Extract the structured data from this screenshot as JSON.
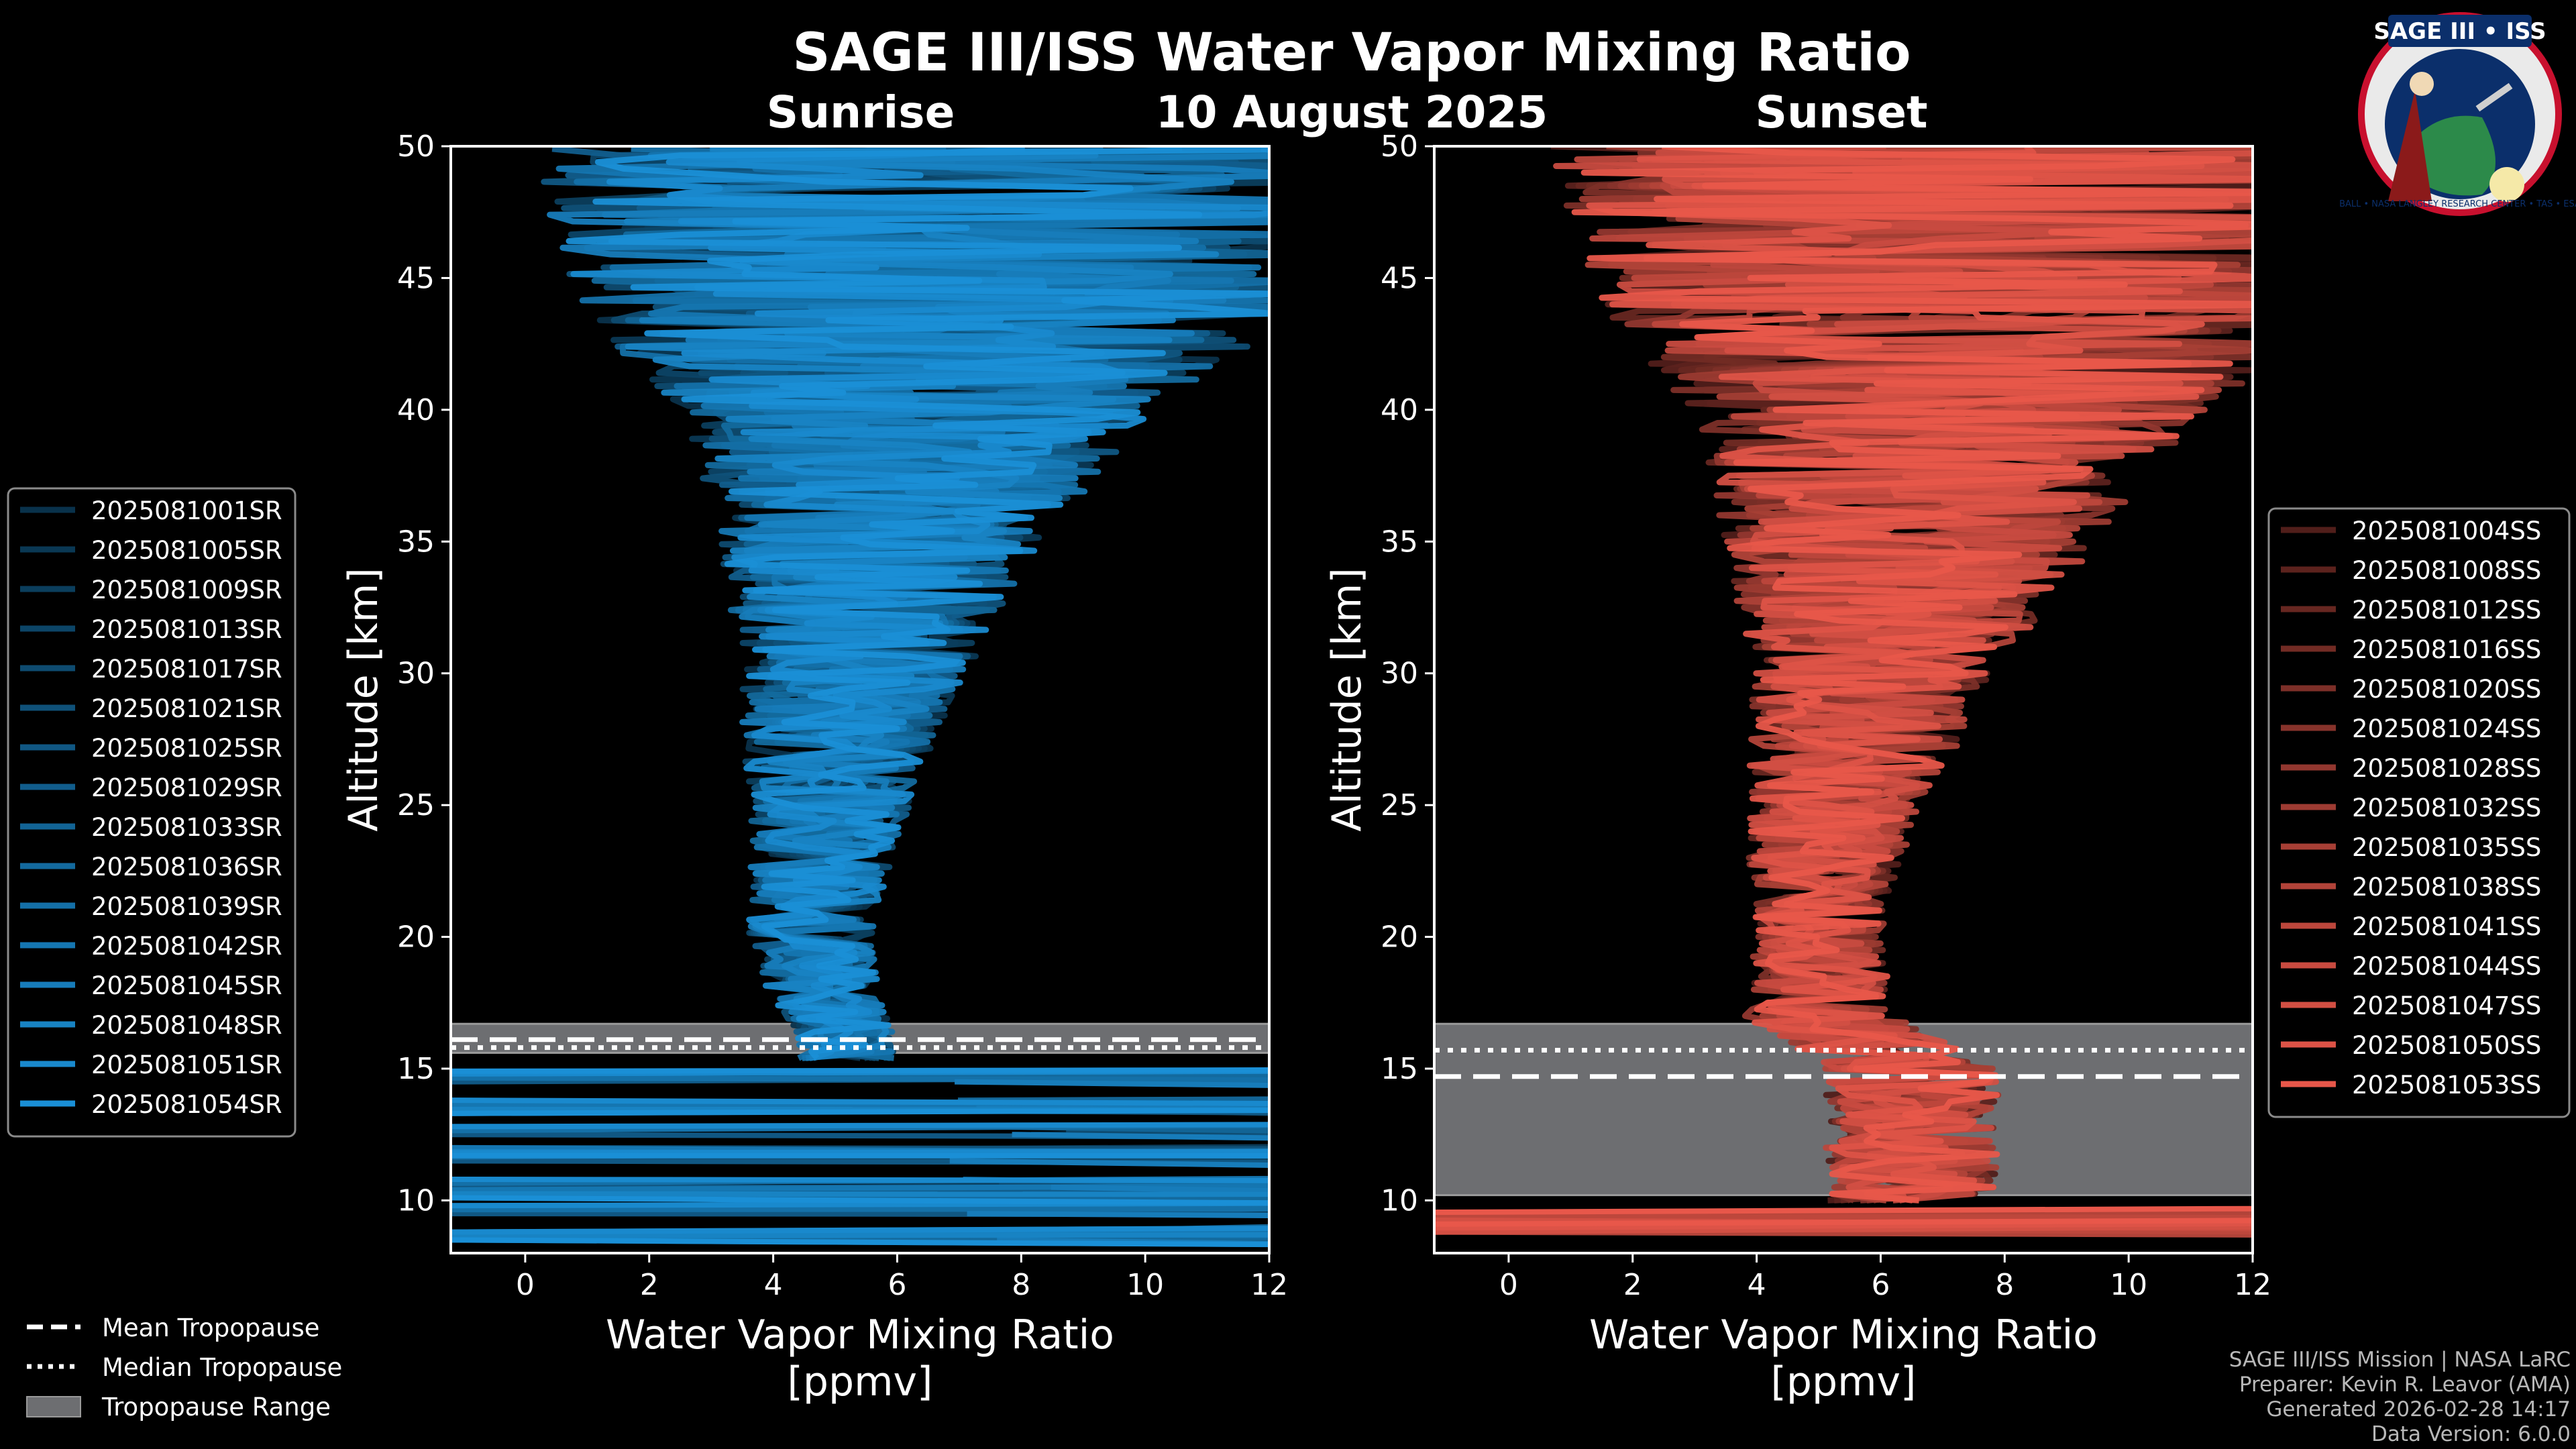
{
  "title": "SAGE III/ISS Water Vapor Mixing Ratio",
  "date": "10 August 2025",
  "logo": {
    "name": "SAGE III • ISS",
    "ring_text": "BALL • NASA LANGLEY RESEARCH CENTER • TAS • ESA"
  },
  "credits": [
    "SAGE III/ISS Mission | NASA LaRC",
    "Preparer: Kevin R. Leavor (AMA)",
    "Generated 2026-02-28 14:17",
    "Data Version: 6.0.0"
  ],
  "tropopause_legend": [
    {
      "label": "Mean Tropopause",
      "style": "dashed"
    },
    {
      "label": "Median Tropopause",
      "style": "dotted"
    },
    {
      "label": "Tropopause Range",
      "style": "band"
    }
  ],
  "colors": {
    "sunrise": "#1a8fd6",
    "sunset": "#e8574a",
    "range": "#6d6e71",
    "background": "#000000"
  },
  "chart_data": [
    {
      "type": "line",
      "title": "Sunrise",
      "xlabel": "Water Vapor Mixing Ratio\n[ppmv]",
      "ylabel": "Altitude [km]",
      "xlim": [
        -1.2,
        12
      ],
      "ylim": [
        8,
        50
      ],
      "xticks": [
        0,
        2,
        4,
        6,
        8,
        10,
        12
      ],
      "yticks": [
        10,
        15,
        20,
        25,
        30,
        35,
        40,
        45,
        50
      ],
      "tropopause": {
        "mean": 16.1,
        "median": 15.8,
        "range": [
          15.6,
          16.7
        ]
      },
      "series_names": [
        "2025081001SR",
        "2025081005SR",
        "2025081009SR",
        "2025081013SR",
        "2025081017SR",
        "2025081021SR",
        "2025081025SR",
        "2025081029SR",
        "2025081033SR",
        "2025081036SR",
        "2025081039SR",
        "2025081042SR",
        "2025081045SR",
        "2025081048SR",
        "2025081051SR",
        "2025081054SR"
      ],
      "profile_center": [
        [
          16,
          5.2
        ],
        [
          18,
          4.8
        ],
        [
          20,
          4.6
        ],
        [
          22,
          4.7
        ],
        [
          25,
          4.9
        ],
        [
          28,
          5.1
        ],
        [
          31,
          5.4
        ],
        [
          34,
          5.6
        ],
        [
          37,
          6.0
        ],
        [
          40,
          6.3
        ],
        [
          43,
          6.6
        ],
        [
          46,
          6.8
        ],
        [
          50,
          7.0
        ]
      ],
      "profile_spread": [
        [
          16,
          0.8
        ],
        [
          20,
          1.0
        ],
        [
          25,
          1.3
        ],
        [
          30,
          1.8
        ],
        [
          35,
          2.6
        ],
        [
          40,
          3.8
        ],
        [
          44,
          6.0
        ],
        [
          50,
          7.0
        ]
      ]
    },
    {
      "type": "line",
      "title": "Sunset",
      "xlabel": "Water Vapor Mixing Ratio\n[ppmv]",
      "ylabel": "Altitude [km]",
      "xlim": [
        -1.2,
        12
      ],
      "ylim": [
        8,
        50
      ],
      "xticks": [
        0,
        2,
        4,
        6,
        8,
        10,
        12
      ],
      "yticks": [
        10,
        15,
        20,
        25,
        30,
        35,
        40,
        45,
        50
      ],
      "tropopause": {
        "mean": 14.7,
        "median": 15.7,
        "range": [
          10.2,
          16.7
        ]
      },
      "series_names": [
        "2025081004SS",
        "2025081008SS",
        "2025081012SS",
        "2025081016SS",
        "2025081020SS",
        "2025081024SS",
        "2025081028SS",
        "2025081032SS",
        "2025081035SS",
        "2025081038SS",
        "2025081041SS",
        "2025081044SS",
        "2025081047SS",
        "2025081050SS",
        "2025081053SS"
      ],
      "profile_center": [
        [
          15,
          6.5
        ],
        [
          17,
          5.0
        ],
        [
          20,
          5.0
        ],
        [
          23,
          5.1
        ],
        [
          26,
          5.4
        ],
        [
          29,
          5.8
        ],
        [
          32,
          6.1
        ],
        [
          35,
          6.5
        ],
        [
          38,
          6.9
        ],
        [
          41,
          7.2
        ],
        [
          45,
          7.5
        ],
        [
          50,
          7.6
        ]
      ],
      "profile_spread": [
        [
          15,
          1.4
        ],
        [
          20,
          1.0
        ],
        [
          25,
          1.4
        ],
        [
          30,
          2.0
        ],
        [
          35,
          3.0
        ],
        [
          40,
          4.2
        ],
        [
          44,
          6.0
        ],
        [
          50,
          7.0
        ]
      ]
    }
  ]
}
